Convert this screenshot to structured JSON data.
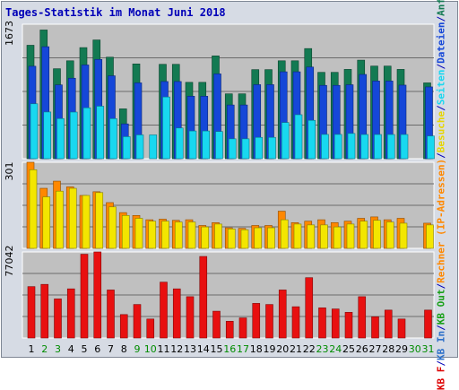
{
  "title": "Tages-Statistik im Monat Juni 2018",
  "legend": [
    {
      "text": "KB F",
      "color": "#dd0000"
    },
    {
      "text": "/",
      "color": "#0000b8"
    },
    {
      "text": "KB In",
      "color": "#2c6fc9"
    },
    {
      "text": "/",
      "color": "#0000b8"
    },
    {
      "text": "KB Out",
      "color": "#19a019"
    },
    {
      "text": "/",
      "color": "#0000b8"
    },
    {
      "text": "Rechner (IP-Adressen)",
      "color": "#ff8800"
    },
    {
      "text": "/",
      "color": "#0000b8"
    },
    {
      "text": "Besuche",
      "color": "#e6d600"
    },
    {
      "text": "/",
      "color": "#0000b8"
    },
    {
      "text": "Seiten",
      "color": "#18d8f0"
    },
    {
      "text": "/",
      "color": "#0000b8"
    },
    {
      "text": "Dateien",
      "color": "#1547d8"
    },
    {
      "text": "/",
      "color": "#0000b8"
    },
    {
      "text": "Anfragen",
      "color": "#137a52"
    }
  ],
  "colors": {
    "anfragen": "#137a52",
    "dateien": "#1547d8",
    "seiten": "#18d8f0",
    "rechner": "#ff8800",
    "besuche": "#f3e600",
    "kb": "#e81010",
    "panel_bg": "#c0c0c0",
    "grid": "#6b6b6b",
    "weekday_label": "#000000",
    "weekend_label": "#008c00"
  },
  "chart_data": [
    {
      "type": "bar",
      "panel": "top",
      "ylabel": "1673",
      "ylim": [
        0,
        1673
      ],
      "categories": [
        "1",
        "2",
        "3",
        "4",
        "5",
        "6",
        "7",
        "8",
        "9",
        "10",
        "11",
        "12",
        "13",
        "14",
        "15",
        "16",
        "17",
        "18",
        "19",
        "20",
        "21",
        "22",
        "23",
        "24",
        "25",
        "26",
        "27",
        "28",
        "29",
        "30",
        "31"
      ],
      "weekend": [
        false,
        true,
        true,
        false,
        false,
        false,
        false,
        false,
        true,
        true,
        false,
        false,
        false,
        false,
        false,
        true,
        true,
        false,
        false,
        false,
        false,
        false,
        true,
        true,
        false,
        false,
        false,
        false,
        false,
        true,
        true
      ],
      "series": [
        {
          "name": "Anfragen",
          "values": [
            1411,
            1601,
            1119,
            1218,
            1382,
            1477,
            1263,
            620,
            1179,
            0,
            1174,
            1174,
            950,
            950,
            1279,
            807,
            807,
            1108,
            1108,
            1218,
            1218,
            1370,
            1074,
            1074,
            1111,
            1226,
            1152,
            1152,
            1111,
            0,
            943
          ]
        },
        {
          "name": "Dateien",
          "values": [
            1150,
            1393,
            918,
            1001,
            1166,
            1235,
            1031,
            433,
            943,
            0,
            960,
            960,
            777,
            777,
            1055,
            668,
            668,
            921,
            921,
            1081,
            1081,
            1140,
            912,
            912,
            920,
            1048,
            966,
            966,
            915,
            0,
            893
          ]
        },
        {
          "name": "Seiten",
          "values": [
            683,
            581,
            499,
            580,
            633,
            653,
            498,
            274,
            296,
            296,
            768,
            382,
            345,
            345,
            338,
            247,
            247,
            265,
            265,
            450,
            547,
            477,
            302,
            302,
            314,
            301,
            301,
            301,
            301,
            0,
            283
          ]
        }
      ]
    },
    {
      "type": "bar",
      "panel": "middle",
      "ylabel": "301",
      "ylim": [
        0,
        301
      ],
      "series": [
        {
          "name": "Rechner (IP-Adressen)",
          "values": [
            301,
            210,
            235,
            215,
            185,
            198,
            160,
            125,
            115,
            100,
            102,
            98,
            100,
            80,
            90,
            72,
            70,
            80,
            80,
            130,
            90,
            95,
            100,
            90,
            95,
            105,
            110,
            100,
            105,
            0,
            88
          ]
        },
        {
          "name": "Besuche",
          "values": [
            275,
            180,
            200,
            210,
            185,
            195,
            145,
            115,
            105,
            95,
            95,
            92,
            92,
            75,
            85,
            68,
            65,
            72,
            72,
            100,
            85,
            82,
            82,
            75,
            85,
            95,
            98,
            92,
            88,
            0,
            82
          ]
        }
      ]
    },
    {
      "type": "bar",
      "panel": "bottom",
      "ylabel": "77042",
      "ylim": [
        0,
        77042
      ],
      "series": [
        {
          "name": "KB F",
          "values": [
            46000,
            48000,
            35000,
            44000,
            75000,
            77042,
            43000,
            21000,
            30000,
            17000,
            50000,
            44000,
            37000,
            73000,
            24000,
            15000,
            18000,
            31000,
            30000,
            43000,
            28000,
            54000,
            27000,
            26000,
            23000,
            37000,
            19000,
            25000,
            17000,
            0,
            25000
          ]
        }
      ]
    }
  ]
}
